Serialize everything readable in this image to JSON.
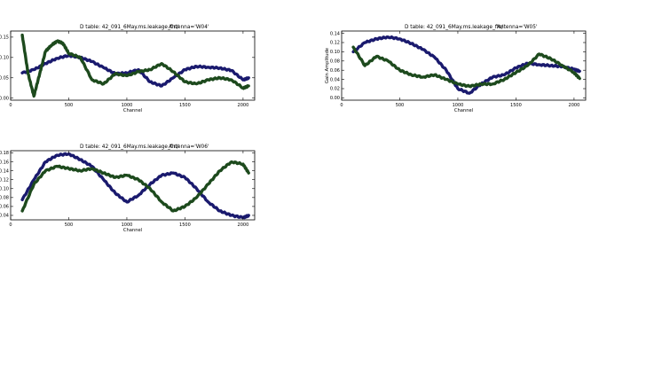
{
  "chart_data": [
    {
      "type": "line",
      "title": "D table: 42_091_6May.ms.leakage_fin/",
      "antenna": "Antenna='W04'",
      "xlabel": "Channel",
      "ylabel": "",
      "xlim": [
        0,
        2100
      ],
      "ylim": [
        -0.005,
        0.165
      ],
      "xticks": [
        0,
        500,
        1000,
        1500,
        2000
      ],
      "yticks": [
        0.0,
        0.05,
        0.1,
        0.15
      ],
      "ytick_labels": [
        "0.00",
        "0.05",
        "0.10",
        "0.15"
      ],
      "grid": false,
      "series": [
        {
          "color": "#1a1a6e",
          "x": [
            100,
            200,
            300,
            400,
            500,
            600,
            700,
            800,
            900,
            1000,
            1100,
            1200,
            1300,
            1400,
            1500,
            1600,
            1700,
            1800,
            1900,
            2000,
            2048
          ],
          "y": [
            0.062,
            0.07,
            0.085,
            0.098,
            0.105,
            0.1,
            0.09,
            0.075,
            0.06,
            0.062,
            0.07,
            0.04,
            0.03,
            0.05,
            0.07,
            0.078,
            0.076,
            0.074,
            0.068,
            0.045,
            0.05
          ]
        },
        {
          "color": "#1d4a1d",
          "x": [
            100,
            150,
            200,
            250,
            300,
            350,
            400,
            450,
            500,
            600,
            700,
            800,
            900,
            1000,
            1100,
            1200,
            1300,
            1400,
            1500,
            1600,
            1700,
            1800,
            1900,
            2000,
            2048
          ],
          "y": [
            0.155,
            0.06,
            0.005,
            0.06,
            0.115,
            0.13,
            0.14,
            0.135,
            0.11,
            0.1,
            0.045,
            0.035,
            0.06,
            0.055,
            0.065,
            0.07,
            0.085,
            0.065,
            0.04,
            0.035,
            0.045,
            0.05,
            0.045,
            0.025,
            0.03
          ]
        }
      ]
    },
    {
      "type": "line",
      "title": "D table: 42_091_6May.ms.leakage_fin/",
      "antenna": "Antenna='W05'",
      "xlabel": "Channel",
      "ylabel": "Gain Amplitude",
      "xlim": [
        0,
        2100
      ],
      "ylim": [
        -0.005,
        0.145
      ],
      "xticks": [
        0,
        500,
        1000,
        1500,
        2000
      ],
      "yticks": [
        0.0,
        0.02,
        0.04,
        0.06,
        0.08,
        0.1,
        0.12,
        0.14
      ],
      "ytick_labels": [
        "0.00",
        "0.02",
        "0.04",
        "0.06",
        "0.08",
        "0.10",
        "0.12",
        "0.14"
      ],
      "grid": false,
      "series": [
        {
          "color": "#1a1a6e",
          "x": [
            100,
            200,
            300,
            400,
            500,
            600,
            700,
            800,
            900,
            1000,
            1100,
            1200,
            1300,
            1400,
            1500,
            1600,
            1700,
            1800,
            1900,
            2000,
            2048
          ],
          "y": [
            0.1,
            0.12,
            0.128,
            0.132,
            0.128,
            0.118,
            0.105,
            0.088,
            0.06,
            0.02,
            0.01,
            0.03,
            0.045,
            0.05,
            0.065,
            0.075,
            0.072,
            0.07,
            0.068,
            0.062,
            0.058
          ]
        },
        {
          "color": "#1d4a1d",
          "x": [
            100,
            200,
            300,
            400,
            500,
            600,
            700,
            800,
            900,
            1000,
            1100,
            1200,
            1300,
            1400,
            1500,
            1600,
            1700,
            1800,
            1900,
            2000,
            2048
          ],
          "y": [
            0.11,
            0.07,
            0.09,
            0.08,
            0.06,
            0.05,
            0.045,
            0.05,
            0.04,
            0.03,
            0.025,
            0.03,
            0.03,
            0.04,
            0.055,
            0.07,
            0.095,
            0.085,
            0.07,
            0.055,
            0.042
          ]
        }
      ]
    },
    {
      "type": "line",
      "title": "D table: 42_091_6May.ms.leakage_fin/",
      "antenna": "Antenna='W06'",
      "xlabel": "Channel",
      "ylabel": "",
      "xlim": [
        0,
        2100
      ],
      "ylim": [
        0.03,
        0.185
      ],
      "xticks": [
        0,
        500,
        1000,
        1500,
        2000
      ],
      "yticks": [
        0.04,
        0.06,
        0.08,
        0.1,
        0.12,
        0.14,
        0.16,
        0.18
      ],
      "ytick_labels": [
        "0.04",
        "0.06",
        "0.08",
        "0.10",
        "0.12",
        "0.14",
        "0.16",
        "0.18"
      ],
      "grid": false,
      "series": [
        {
          "color": "#1a1a6e",
          "x": [
            100,
            200,
            300,
            400,
            500,
            600,
            700,
            800,
            900,
            1000,
            1100,
            1200,
            1300,
            1400,
            1500,
            1600,
            1700,
            1800,
            1900,
            2000,
            2048
          ],
          "y": [
            0.075,
            0.12,
            0.16,
            0.175,
            0.178,
            0.165,
            0.15,
            0.12,
            0.09,
            0.07,
            0.085,
            0.11,
            0.13,
            0.135,
            0.125,
            0.1,
            0.07,
            0.05,
            0.04,
            0.035,
            0.04
          ]
        },
        {
          "color": "#1d4a1d",
          "x": [
            100,
            200,
            300,
            400,
            500,
            600,
            700,
            800,
            900,
            1000,
            1100,
            1200,
            1300,
            1400,
            1500,
            1600,
            1700,
            1800,
            1900,
            2000,
            2048
          ],
          "y": [
            0.05,
            0.11,
            0.14,
            0.15,
            0.145,
            0.14,
            0.145,
            0.135,
            0.125,
            0.13,
            0.12,
            0.1,
            0.07,
            0.05,
            0.06,
            0.08,
            0.11,
            0.14,
            0.16,
            0.155,
            0.135
          ]
        }
      ]
    }
  ]
}
